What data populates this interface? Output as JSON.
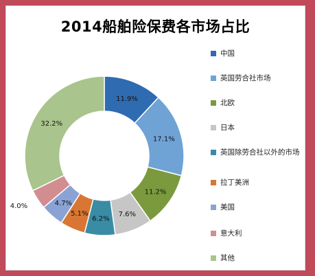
{
  "chart_data": {
    "type": "pie",
    "title": "2014船舶险保费各市场占比",
    "categories": [
      "中国",
      "英国劳合社市场",
      "北欧",
      "日本",
      "英国除劳合社以外的市场",
      "拉丁美洲",
      "美国",
      "意大利",
      "其他"
    ],
    "values": [
      11.9,
      17.1,
      11.2,
      7.6,
      6.2,
      5.1,
      4.7,
      4.0,
      32.2
    ],
    "value_labels": [
      "11.9%",
      "17.1%",
      "11.2%",
      "7.6%",
      "6.2%",
      "5.1%",
      "4.7%",
      "4.0%",
      "32.2%"
    ],
    "colors": [
      "#2e6bb0",
      "#6fa3d6",
      "#7b9a3e",
      "#c6c6c6",
      "#3a8ca5",
      "#d97634",
      "#8aa3d4",
      "#d28d91",
      "#a9c48c"
    ],
    "legend_position": "right",
    "style": "donut"
  }
}
